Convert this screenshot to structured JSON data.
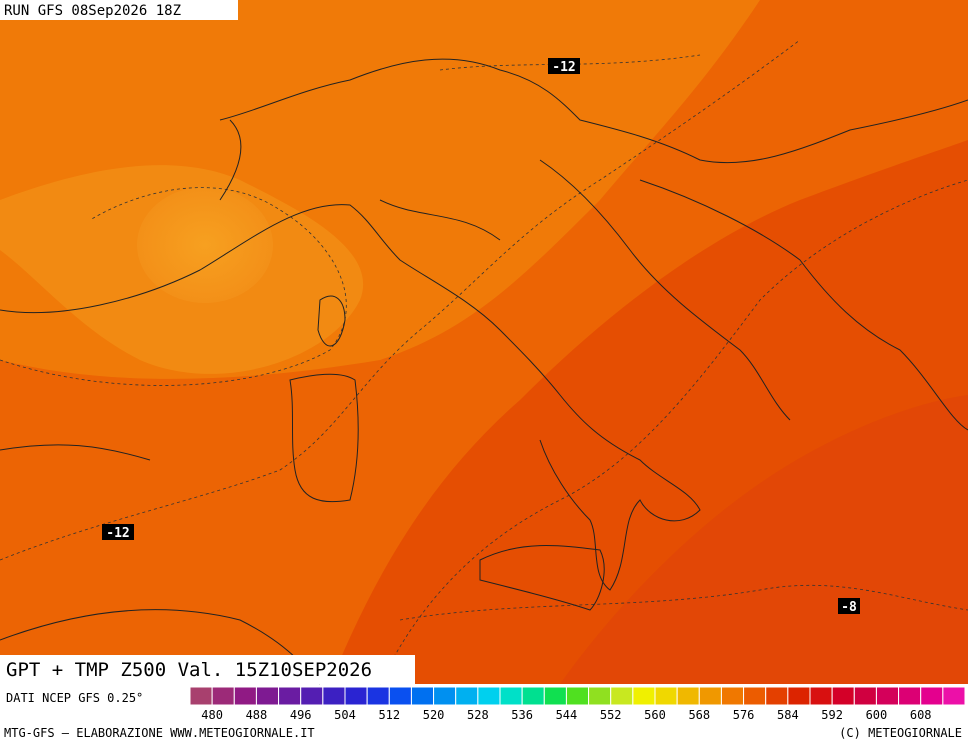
{
  "header": {
    "run": "RUN GFS 08Sep2026 18Z"
  },
  "contour_labels": [
    "-12",
    "-12",
    "-8"
  ],
  "product": {
    "title": "GPT + TMP Z500 Val. 15Z10SEP2026"
  },
  "source": "DATI NCEP GFS 0.25°",
  "colorbar": {
    "colors": [
      "#a8406e",
      "#9c2a78",
      "#901a84",
      "#7e1a92",
      "#6a1ca2",
      "#541eb2",
      "#3c20c2",
      "#2a24d2",
      "#1a34e2",
      "#0a50f0",
      "#0070f0",
      "#0090f0",
      "#00b0f0",
      "#00d0ee",
      "#00e0c8",
      "#00e090",
      "#10e050",
      "#50e020",
      "#90e020",
      "#c8e820",
      "#f0f000",
      "#f0d800",
      "#f0b800",
      "#f09800",
      "#f07800",
      "#ec5c00",
      "#e44000",
      "#dc2400",
      "#d81010",
      "#d40028",
      "#d00040",
      "#d4005a",
      "#dc0074",
      "#e4008e",
      "#ec10a8"
    ],
    "labels": [
      "480",
      "488",
      "496",
      "504",
      "512",
      "520",
      "528",
      "536",
      "544",
      "552",
      "560",
      "568",
      "576",
      "584",
      "592",
      "600",
      "608"
    ]
  },
  "footer": {
    "left": "MTG-GFS — ELABORAZIONE WWW.METEOGIORNALE.IT",
    "right": "(C) METEOGIORNALE"
  }
}
